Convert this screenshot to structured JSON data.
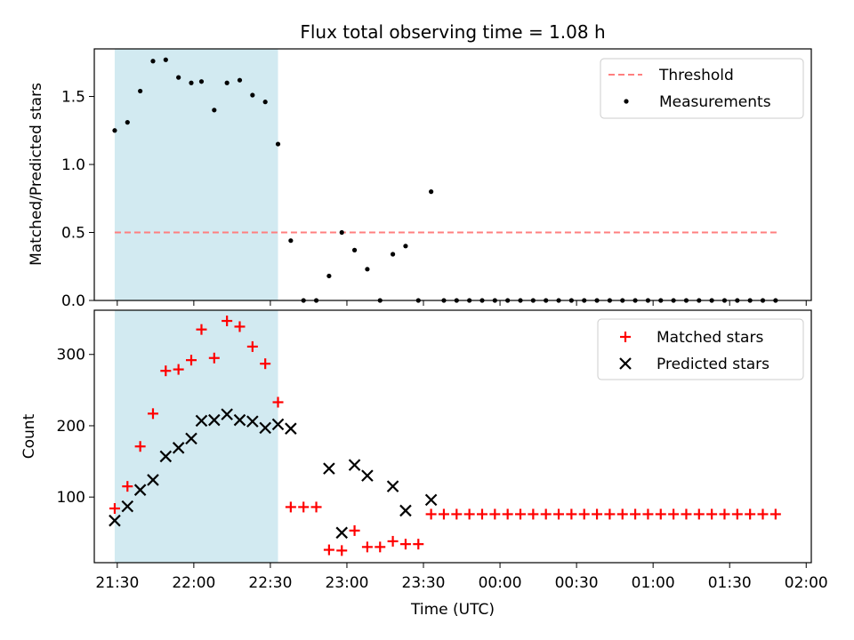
{
  "figure": {
    "title": "Flux total observing time = 1.08 h",
    "xlabel": "Time (UTC)",
    "x_ticks": [
      "21:30",
      "22:00",
      "22:30",
      "23:00",
      "23:30",
      "00:00",
      "00:30",
      "01:00",
      "01:30",
      "02:00"
    ],
    "background": "#ffffff"
  },
  "chart_data": [
    {
      "type": "scatter",
      "ylabel": "Matched/Predicted stars",
      "xlim": [
        "21:21",
        "02:02"
      ],
      "ylim": [
        0,
        1.85
      ],
      "y_ticks": [
        "0.0",
        "0.5",
        "1.0",
        "1.5"
      ],
      "shaded_region": {
        "x_start": "21:29",
        "x_end": "22:33",
        "color": "#add8e6"
      },
      "legend_position": "upper right",
      "series": [
        {
          "name": "Threshold",
          "style": "dashed-line",
          "color": "#ff7f7f",
          "points": [
            [
              "21:29",
              0.5
            ],
            [
              "01:49",
              0.5
            ]
          ]
        },
        {
          "name": "Measurements",
          "style": "dot",
          "color": "#000000",
          "points": [
            [
              "21:29",
              1.25
            ],
            [
              "21:34",
              1.31
            ],
            [
              "21:39",
              1.54
            ],
            [
              "21:44",
              1.76
            ],
            [
              "21:49",
              1.77
            ],
            [
              "21:54",
              1.64
            ],
            [
              "21:59",
              1.6
            ],
            [
              "22:03",
              1.61
            ],
            [
              "22:08",
              1.4
            ],
            [
              "22:13",
              1.6
            ],
            [
              "22:18",
              1.62
            ],
            [
              "22:23",
              1.51
            ],
            [
              "22:28",
              1.46
            ],
            [
              "22:33",
              1.15
            ],
            [
              "22:38",
              0.44
            ],
            [
              "22:43",
              0.0
            ],
            [
              "22:48",
              0.0
            ],
            [
              "22:53",
              0.18
            ],
            [
              "22:58",
              0.5
            ],
            [
              "23:03",
              0.37
            ],
            [
              "23:08",
              0.23
            ],
            [
              "23:13",
              0.0
            ],
            [
              "23:18",
              0.34
            ],
            [
              "23:23",
              0.4
            ],
            [
              "23:28",
              0.0
            ],
            [
              "23:33",
              0.8
            ],
            [
              "23:38",
              0.0
            ],
            [
              "23:43",
              0.0
            ],
            [
              "23:48",
              0.0
            ],
            [
              "23:53",
              0.0
            ],
            [
              "23:58",
              0.0
            ],
            [
              "00:03",
              0.0
            ],
            [
              "00:08",
              0.0
            ],
            [
              "00:13",
              0.0
            ],
            [
              "00:18",
              0.0
            ],
            [
              "00:23",
              0.0
            ],
            [
              "00:28",
              0.0
            ],
            [
              "00:33",
              0.0
            ],
            [
              "00:38",
              0.0
            ],
            [
              "00:43",
              0.0
            ],
            [
              "00:48",
              0.0
            ],
            [
              "00:53",
              0.0
            ],
            [
              "00:58",
              0.0
            ],
            [
              "01:03",
              0.0
            ],
            [
              "01:08",
              0.0
            ],
            [
              "01:13",
              0.0
            ],
            [
              "01:18",
              0.0
            ],
            [
              "01:23",
              0.0
            ],
            [
              "01:28",
              0.0
            ],
            [
              "01:33",
              0.0
            ],
            [
              "01:38",
              0.0
            ],
            [
              "01:43",
              0.0
            ],
            [
              "01:48",
              0.0
            ]
          ]
        }
      ]
    },
    {
      "type": "scatter",
      "ylabel": "Count",
      "xlim": [
        "21:21",
        "02:02"
      ],
      "ylim": [
        8,
        362
      ],
      "y_ticks": [
        "100",
        "200",
        "300"
      ],
      "shaded_region": {
        "x_start": "21:29",
        "x_end": "22:33",
        "color": "#add8e6"
      },
      "legend_position": "upper right",
      "series": [
        {
          "name": "Matched stars",
          "style": "plus",
          "color": "#ff0000",
          "points": [
            [
              "21:29",
              84
            ],
            [
              "21:34",
              115
            ],
            [
              "21:39",
              171
            ],
            [
              "21:44",
              217
            ],
            [
              "21:49",
              277
            ],
            [
              "21:54",
              279
            ],
            [
              "21:59",
              292
            ],
            [
              "22:03",
              335
            ],
            [
              "22:08",
              295
            ],
            [
              "22:13",
              347
            ],
            [
              "22:18",
              339
            ],
            [
              "22:23",
              311
            ],
            [
              "22:28",
              287
            ],
            [
              "22:33",
              233
            ],
            [
              "22:38",
              86
            ],
            [
              "22:43",
              86
            ],
            [
              "22:48",
              86
            ],
            [
              "22:53",
              26
            ],
            [
              "22:58",
              25
            ],
            [
              "23:03",
              53
            ],
            [
              "23:08",
              30
            ],
            [
              "23:13",
              30
            ],
            [
              "23:18",
              38
            ],
            [
              "23:23",
              34
            ],
            [
              "23:28",
              34
            ],
            [
              "23:33",
              76
            ],
            [
              "23:38",
              76
            ],
            [
              "23:43",
              76
            ],
            [
              "23:48",
              76
            ],
            [
              "23:53",
              76
            ],
            [
              "23:58",
              76
            ],
            [
              "00:03",
              76
            ],
            [
              "00:08",
              76
            ],
            [
              "00:13",
              76
            ],
            [
              "00:18",
              76
            ],
            [
              "00:23",
              76
            ],
            [
              "00:28",
              76
            ],
            [
              "00:33",
              76
            ],
            [
              "00:38",
              76
            ],
            [
              "00:43",
              76
            ],
            [
              "00:48",
              76
            ],
            [
              "00:53",
              76
            ],
            [
              "00:58",
              76
            ],
            [
              "01:03",
              76
            ],
            [
              "01:08",
              76
            ],
            [
              "01:13",
              76
            ],
            [
              "01:18",
              76
            ],
            [
              "01:23",
              76
            ],
            [
              "01:28",
              76
            ],
            [
              "01:33",
              76
            ],
            [
              "01:38",
              76
            ],
            [
              "01:43",
              76
            ],
            [
              "01:48",
              76
            ]
          ]
        },
        {
          "name": "Predicted stars",
          "style": "x",
          "color": "#000000",
          "points": [
            [
              "21:29",
              67
            ],
            [
              "21:34",
              87
            ],
            [
              "21:39",
              110
            ],
            [
              "21:44",
              124
            ],
            [
              "21:49",
              157
            ],
            [
              "21:54",
              169
            ],
            [
              "21:59",
              182
            ],
            [
              "22:03",
              207
            ],
            [
              "22:08",
              208
            ],
            [
              "22:13",
              216
            ],
            [
              "22:18",
              208
            ],
            [
              "22:23",
              206
            ],
            [
              "22:28",
              197
            ],
            [
              "22:33",
              202
            ],
            [
              "22:38",
              196
            ],
            [
              "22:53",
              140
            ],
            [
              "22:58",
              50
            ],
            [
              "23:03",
              145
            ],
            [
              "23:08",
              130
            ],
            [
              "23:18",
              115
            ],
            [
              "23:23",
              81
            ],
            [
              "23:33",
              96
            ]
          ]
        }
      ]
    }
  ]
}
